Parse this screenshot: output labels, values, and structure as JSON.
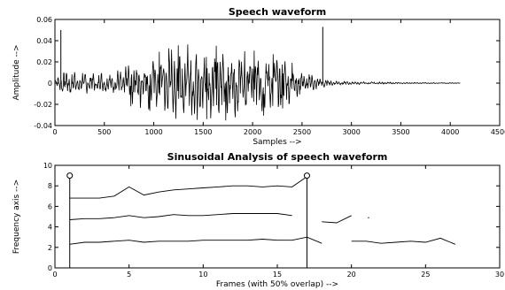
{
  "chart_data": [
    {
      "type": "line",
      "title": "Speech waveform",
      "xlabel": "Samples -->",
      "ylabel": "Amplitude -->",
      "xlim": [
        0,
        4500
      ],
      "ylim": [
        -0.04,
        0.06
      ],
      "xticks": [
        "0",
        "500",
        "1000",
        "1500",
        "2000",
        "2500",
        "3000",
        "3500",
        "4000",
        "4500"
      ],
      "yticks": [
        "-0.04",
        "-0.02",
        "0",
        "0.02",
        "0.04",
        "0.06"
      ],
      "grid": false,
      "impulses": [
        {
          "x": 60,
          "y": 0.05
        },
        {
          "x": 2710,
          "y": 0.053
        }
      ],
      "envelope": [
        {
          "x": 0,
          "a": 0.004
        },
        {
          "x": 100,
          "a": 0.011
        },
        {
          "x": 300,
          "a": 0.009
        },
        {
          "x": 600,
          "a": 0.008
        },
        {
          "x": 750,
          "a": 0.018
        },
        {
          "x": 900,
          "a": 0.02
        },
        {
          "x": 1100,
          "a": 0.026
        },
        {
          "x": 1300,
          "a": 0.031
        },
        {
          "x": 1500,
          "a": 0.028
        },
        {
          "x": 1700,
          "a": 0.03
        },
        {
          "x": 1900,
          "a": 0.025
        },
        {
          "x": 2100,
          "a": 0.026
        },
        {
          "x": 2300,
          "a": 0.02
        },
        {
          "x": 2500,
          "a": 0.012
        },
        {
          "x": 2650,
          "a": 0.005
        },
        {
          "x": 2800,
          "a": 0.002
        },
        {
          "x": 3000,
          "a": 0.0012
        },
        {
          "x": 3500,
          "a": 0.0006
        },
        {
          "x": 4100,
          "a": 0.0002
        }
      ],
      "signal_end": 4100
    },
    {
      "type": "line",
      "title": "Sinusoidal Analysis of speech waveform",
      "xlabel": "Frames (with 50% overlap) -->",
      "ylabel": "Frequency axis -->",
      "xlim": [
        0,
        30
      ],
      "ylim": [
        0,
        10
      ],
      "xticks": [
        "0",
        "5",
        "10",
        "15",
        "20",
        "25",
        "30"
      ],
      "yticks": [
        "0",
        "2",
        "4",
        "6",
        "8",
        "10"
      ],
      "grid": false,
      "stems": [
        {
          "x": 1,
          "y": 9
        },
        {
          "x": 17,
          "y": 9
        }
      ],
      "series": [
        {
          "x": [
            1,
            2,
            3,
            4,
            5,
            6,
            7,
            8,
            9,
            10,
            11,
            12,
            13,
            14,
            15,
            16,
            17
          ],
          "values": [
            6.8,
            6.8,
            6.8,
            7.0,
            7.9,
            7.1,
            7.4,
            7.6,
            7.7,
            7.8,
            7.9,
            8.0,
            8.0,
            7.9,
            8.0,
            7.9,
            8.9
          ]
        },
        {
          "x": [
            1,
            2,
            3,
            4,
            5,
            6,
            7,
            8,
            9,
            10,
            11,
            12,
            13,
            14,
            15,
            16
          ],
          "values": [
            4.7,
            4.8,
            4.8,
            4.9,
            5.1,
            4.9,
            5.0,
            5.2,
            5.1,
            5.1,
            5.2,
            5.3,
            5.3,
            5.3,
            5.3,
            5.1
          ]
        },
        {
          "x": [
            18,
            19,
            20
          ],
          "values": [
            4.5,
            4.4,
            5.1
          ]
        },
        {
          "x": [
            21.1,
            21.2
          ],
          "values": [
            4.9,
            4.9
          ]
        },
        {
          "x": [
            1,
            2,
            3,
            4,
            5,
            6,
            7,
            8,
            9,
            10,
            11,
            12,
            13,
            14,
            15,
            16,
            17,
            18
          ],
          "values": [
            2.3,
            2.5,
            2.5,
            2.6,
            2.7,
            2.5,
            2.6,
            2.6,
            2.6,
            2.7,
            2.7,
            2.7,
            2.7,
            2.8,
            2.7,
            2.7,
            3.0,
            2.4
          ]
        },
        {
          "x": [
            20,
            21,
            22,
            23,
            24,
            25,
            26,
            27
          ],
          "values": [
            2.6,
            2.6,
            2.4,
            2.5,
            2.6,
            2.5,
            2.9,
            2.3
          ]
        }
      ]
    }
  ]
}
